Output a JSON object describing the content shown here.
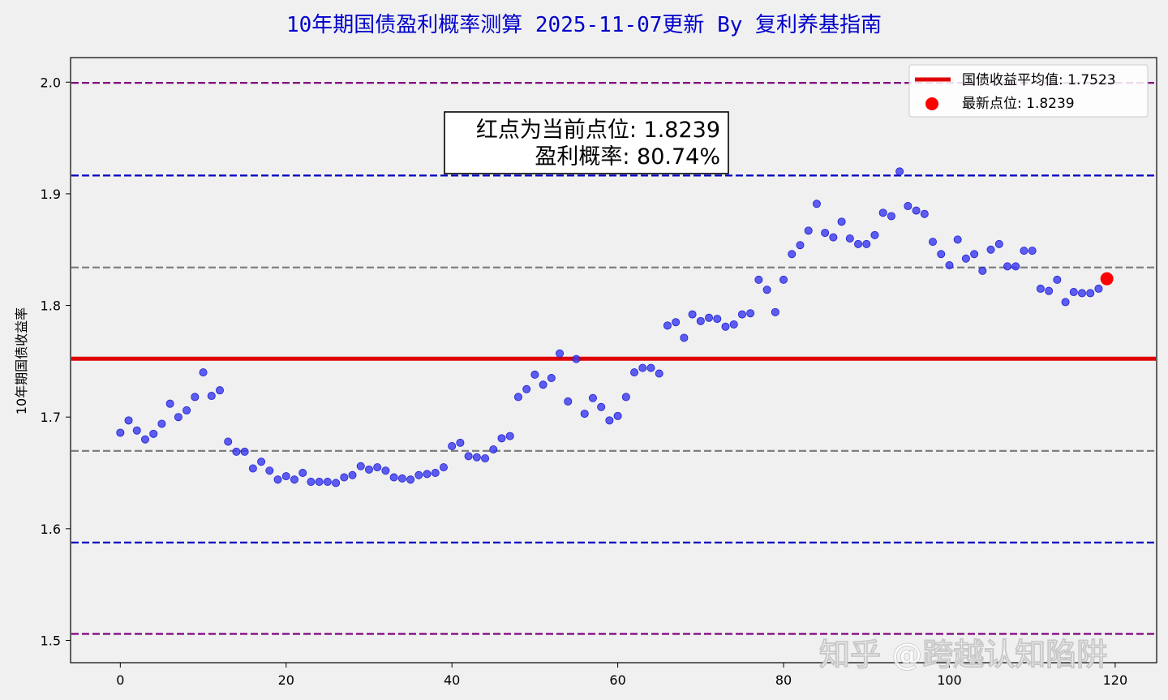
{
  "chart_data": {
    "type": "scatter",
    "title": "10年期国债盈利概率测算 2025-11-07更新   By 复利养基指南",
    "xlabel": "",
    "ylabel": "10年期国债收益率",
    "xlim": [
      -6,
      125
    ],
    "ylim": [
      1.48,
      2.022
    ],
    "xticks": [
      0,
      20,
      40,
      60,
      80,
      100,
      120
    ],
    "yticks": [
      1.5,
      1.6,
      1.7,
      1.8,
      1.9,
      2.0
    ],
    "ytick_labels": [
      "1.5",
      "1.6",
      "1.7",
      "1.8",
      "1.9",
      "2.0"
    ],
    "grid": false,
    "legend_position": "top-right",
    "colors": {
      "points": "#3b3bf0",
      "mean_line": "#e00000",
      "latest_point": "#ff0000",
      "band_outer": "#800080",
      "band_mid": "#0000c0",
      "band_inner": "#808080",
      "title": "#0000cc"
    },
    "mean_line": {
      "y": 1.7523,
      "label": "国债收益平均值: 1.7523"
    },
    "latest_point": {
      "x": 119,
      "y": 1.8239,
      "label": "最新点位: 1.8239"
    },
    "reference_lines": [
      {
        "y": 1.9994,
        "color": "#800080"
      },
      {
        "y": 1.9164,
        "color": "#0000c0"
      },
      {
        "y": 1.834,
        "color": "#808080"
      },
      {
        "y": 1.6697,
        "color": "#808080"
      },
      {
        "y": 1.5876,
        "color": "#0000c0"
      },
      {
        "y": 1.5058,
        "color": "#800080"
      }
    ],
    "annotation": {
      "line1": "红点为当前点位: 1.8239",
      "line2": "盈利概率: 80.74%"
    },
    "series": [
      {
        "values": [
          [
            0,
            1.686
          ],
          [
            1,
            1.697
          ],
          [
            2,
            1.688
          ],
          [
            3,
            1.68
          ],
          [
            4,
            1.685
          ],
          [
            5,
            1.694
          ],
          [
            6,
            1.712
          ],
          [
            7,
            1.7
          ],
          [
            8,
            1.706
          ],
          [
            9,
            1.718
          ],
          [
            10,
            1.74
          ],
          [
            11,
            1.719
          ],
          [
            12,
            1.724
          ],
          [
            13,
            1.678
          ],
          [
            14,
            1.669
          ],
          [
            15,
            1.669
          ],
          [
            16,
            1.654
          ],
          [
            17,
            1.66
          ],
          [
            18,
            1.652
          ],
          [
            19,
            1.644
          ],
          [
            20,
            1.647
          ],
          [
            21,
            1.644
          ],
          [
            22,
            1.65
          ],
          [
            23,
            1.642
          ],
          [
            24,
            1.642
          ],
          [
            25,
            1.642
          ],
          [
            26,
            1.641
          ],
          [
            27,
            1.646
          ],
          [
            28,
            1.648
          ],
          [
            29,
            1.656
          ],
          [
            30,
            1.653
          ],
          [
            31,
            1.655
          ],
          [
            32,
            1.652
          ],
          [
            33,
            1.646
          ],
          [
            34,
            1.645
          ],
          [
            35,
            1.644
          ],
          [
            36,
            1.648
          ],
          [
            37,
            1.649
          ],
          [
            38,
            1.65
          ],
          [
            39,
            1.655
          ],
          [
            40,
            1.674
          ],
          [
            41,
            1.677
          ],
          [
            42,
            1.665
          ],
          [
            43,
            1.664
          ],
          [
            44,
            1.663
          ],
          [
            45,
            1.671
          ],
          [
            46,
            1.681
          ],
          [
            47,
            1.683
          ],
          [
            48,
            1.718
          ],
          [
            49,
            1.725
          ],
          [
            50,
            1.738
          ],
          [
            51,
            1.729
          ],
          [
            52,
            1.735
          ],
          [
            53,
            1.757
          ],
          [
            54,
            1.714
          ],
          [
            55,
            1.752
          ],
          [
            56,
            1.703
          ],
          [
            57,
            1.717
          ],
          [
            58,
            1.709
          ],
          [
            59,
            1.697
          ],
          [
            60,
            1.701
          ],
          [
            61,
            1.718
          ],
          [
            62,
            1.74
          ],
          [
            63,
            1.744
          ],
          [
            64,
            1.744
          ],
          [
            65,
            1.739
          ],
          [
            66,
            1.782
          ],
          [
            67,
            1.785
          ],
          [
            68,
            1.771
          ],
          [
            69,
            1.792
          ],
          [
            70,
            1.786
          ],
          [
            71,
            1.789
          ],
          [
            72,
            1.788
          ],
          [
            73,
            1.781
          ],
          [
            74,
            1.783
          ],
          [
            75,
            1.792
          ],
          [
            76,
            1.793
          ],
          [
            77,
            1.823
          ],
          [
            78,
            1.814
          ],
          [
            79,
            1.794
          ],
          [
            80,
            1.823
          ],
          [
            81,
            1.846
          ],
          [
            82,
            1.854
          ],
          [
            83,
            1.867
          ],
          [
            84,
            1.891
          ],
          [
            85,
            1.865
          ],
          [
            86,
            1.861
          ],
          [
            87,
            1.875
          ],
          [
            88,
            1.86
          ],
          [
            89,
            1.855
          ],
          [
            90,
            1.855
          ],
          [
            91,
            1.863
          ],
          [
            92,
            1.883
          ],
          [
            93,
            1.88
          ],
          [
            94,
            1.92
          ],
          [
            95,
            1.889
          ],
          [
            96,
            1.885
          ],
          [
            97,
            1.882
          ],
          [
            98,
            1.857
          ],
          [
            99,
            1.846
          ],
          [
            100,
            1.836
          ],
          [
            101,
            1.859
          ],
          [
            102,
            1.842
          ],
          [
            103,
            1.846
          ],
          [
            104,
            1.831
          ],
          [
            105,
            1.85
          ],
          [
            106,
            1.855
          ],
          [
            107,
            1.835
          ],
          [
            108,
            1.835
          ],
          [
            109,
            1.849
          ],
          [
            110,
            1.849
          ],
          [
            111,
            1.815
          ],
          [
            112,
            1.813
          ],
          [
            113,
            1.823
          ],
          [
            114,
            1.803
          ],
          [
            115,
            1.812
          ],
          [
            116,
            1.811
          ],
          [
            117,
            1.811
          ],
          [
            118,
            1.815
          ]
        ]
      }
    ]
  },
  "watermark": "知乎 @跨越认知陷阱"
}
